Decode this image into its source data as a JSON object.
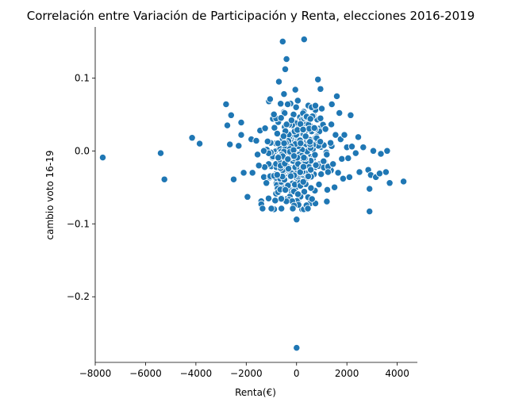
{
  "chart_data": {
    "type": "scatter",
    "title": "Correlación entre Variación de Participación y Renta, elecciones 2016-2019",
    "xlabel": "Renta(€)",
    "ylabel": "cambio voto 16-19",
    "xlim": [
      -8000,
      4800
    ],
    "ylim": [
      -0.29,
      0.17
    ],
    "xticks": [
      {
        "value": -8000,
        "label": "−8000"
      },
      {
        "value": -6000,
        "label": "−6000"
      },
      {
        "value": -4000,
        "label": "−4000"
      },
      {
        "value": -2000,
        "label": "−2000"
      },
      {
        "value": 0,
        "label": "0"
      },
      {
        "value": 2000,
        "label": "2000"
      },
      {
        "value": 4000,
        "label": "4000"
      }
    ],
    "yticks": [
      {
        "value": 0.1,
        "label": "0.1"
      },
      {
        "value": 0.0,
        "label": "0.0"
      },
      {
        "value": -0.1,
        "label": "−0.1"
      },
      {
        "value": -0.2,
        "label": "−0.2"
      }
    ],
    "grid": false,
    "color": "#1f77b4",
    "points": [
      [
        -7700,
        -0.009
      ],
      [
        -5400,
        -0.003
      ],
      [
        -5250,
        -0.039
      ],
      [
        -4150,
        0.018
      ],
      [
        -3850,
        0.01
      ],
      [
        -2800,
        0.064
      ],
      [
        -2750,
        0.035
      ],
      [
        -2650,
        0.009
      ],
      [
        -2600,
        0.049
      ],
      [
        -2500,
        -0.039
      ],
      [
        -2300,
        0.007
      ],
      [
        -2200,
        0.022
      ],
      [
        -2200,
        0.039
      ],
      [
        -2100,
        -0.03
      ],
      [
        -1950,
        -0.063
      ],
      [
        -1800,
        0.016
      ],
      [
        -1750,
        -0.03
      ],
      [
        -1600,
        0.014
      ],
      [
        -1550,
        -0.005
      ],
      [
        -1500,
        -0.02
      ],
      [
        -1450,
        0.028
      ],
      [
        -1400,
        -0.069
      ],
      [
        -1400,
        -0.073
      ],
      [
        -1350,
        -0.079
      ],
      [
        -1300,
        0.0
      ],
      [
        -1250,
        0.031
      ],
      [
        -1200,
        -0.044
      ],
      [
        -1150,
        0.013
      ],
      [
        -1100,
        0.068
      ],
      [
        -1000,
        -0.079
      ],
      [
        -1050,
        0.071
      ],
      [
        -900,
        0.05
      ],
      [
        -850,
        -0.068
      ],
      [
        -700,
        0.095
      ],
      [
        -600,
        -0.079
      ],
      [
        -550,
        0.15
      ],
      [
        -500,
        0.078
      ],
      [
        -450,
        0.112
      ],
      [
        -400,
        0.126
      ],
      [
        -350,
        0.064
      ],
      [
        -200,
        0.042
      ],
      [
        -150,
        -0.079
      ],
      [
        -50,
        0.084
      ],
      [
        0,
        -0.094
      ],
      [
        50,
        0.069
      ],
      [
        300,
        0.153
      ],
      [
        400,
        0.047
      ],
      [
        450,
        -0.079
      ],
      [
        550,
        0.044
      ],
      [
        600,
        0.06
      ],
      [
        750,
        0.062
      ],
      [
        850,
        0.098
      ],
      [
        950,
        0.085
      ],
      [
        1000,
        0.058
      ],
      [
        1050,
        0.036
      ],
      [
        1150,
        0.03
      ],
      [
        1200,
        -0.005
      ],
      [
        1250,
        -0.029
      ],
      [
        1350,
        0.011
      ],
      [
        1400,
        0.064
      ],
      [
        1450,
        -0.018
      ],
      [
        1550,
        0.022
      ],
      [
        1600,
        0.075
      ],
      [
        1650,
        -0.03
      ],
      [
        1700,
        0.052
      ],
      [
        1750,
        0.016
      ],
      [
        1800,
        -0.011
      ],
      [
        1850,
        -0.038
      ],
      [
        1900,
        0.022
      ],
      [
        2000,
        0.005
      ],
      [
        2050,
        -0.01
      ],
      [
        2100,
        -0.036
      ],
      [
        2150,
        0.049
      ],
      [
        2200,
        0.006
      ],
      [
        2350,
        -0.003
      ],
      [
        2450,
        0.019
      ],
      [
        2500,
        -0.029
      ],
      [
        2650,
        0.005
      ],
      [
        2850,
        -0.026
      ],
      [
        2900,
        -0.052
      ],
      [
        2900,
        -0.083
      ],
      [
        2950,
        -0.033
      ],
      [
        3050,
        0.0
      ],
      [
        3150,
        -0.036
      ],
      [
        3300,
        -0.031
      ],
      [
        3350,
        -0.004
      ],
      [
        3550,
        -0.029
      ],
      [
        3600,
        0.0
      ],
      [
        3700,
        -0.044
      ],
      [
        4250,
        -0.042
      ],
      [
        0,
        -0.27
      ]
    ],
    "cluster": {
      "x_center": 0,
      "x_sd": 520,
      "y_center": -0.008,
      "y_sd": 0.03,
      "count": 430,
      "seed": 7
    }
  }
}
